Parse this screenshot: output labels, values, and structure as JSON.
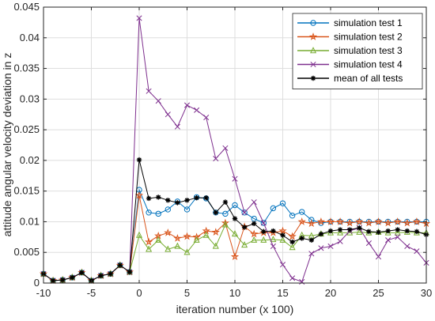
{
  "chart_data": {
    "type": "line",
    "xlabel": "iteration number (x 100)",
    "ylabel": "attitude angular velocity deviation in z",
    "xlim": [
      -10,
      30
    ],
    "ylim": [
      0,
      0.045
    ],
    "xticks": [
      -10,
      -5,
      0,
      5,
      10,
      15,
      20,
      25,
      30
    ],
    "xtick_labels": [
      "-10",
      "-5",
      "0",
      "5",
      "10",
      "15",
      "20",
      "25",
      "30"
    ],
    "yticks": [
      0,
      0.005,
      0.01,
      0.015,
      0.02,
      0.025,
      0.03,
      0.035,
      0.04,
      0.045
    ],
    "ytick_labels": [
      "0",
      "0.005",
      "0.01",
      "0.015",
      "0.02",
      "0.025",
      "0.03",
      "0.035",
      "0.04",
      "0.045"
    ],
    "grid": true,
    "legend_position": "top-right",
    "x": [
      -10,
      -9,
      -8,
      -7,
      -6,
      -5,
      -4,
      -3,
      -2,
      -1,
      0,
      1,
      2,
      3,
      4,
      5,
      6,
      7,
      8,
      9,
      10,
      11,
      12,
      13,
      14,
      15,
      16,
      17,
      18,
      19,
      20,
      21,
      22,
      23,
      24,
      25,
      26,
      27,
      28,
      29,
      30
    ],
    "series": [
      {
        "name": "simulation test 1",
        "color": "#0072BD",
        "marker": "circle",
        "values": [
          0.0015,
          0.0004,
          0.0005,
          0.0009,
          0.0017,
          0.0004,
          0.0012,
          0.0015,
          0.0029,
          0.0018,
          0.0152,
          0.0115,
          0.0113,
          0.012,
          0.0133,
          0.012,
          0.014,
          0.0138,
          0.0115,
          0.0113,
          0.0127,
          0.0115,
          0.0105,
          0.0098,
          0.0122,
          0.013,
          0.011,
          0.0116,
          0.0103,
          0.0098,
          0.01,
          0.01,
          0.01,
          0.01,
          0.01,
          0.01,
          0.01,
          0.01,
          0.01,
          0.01,
          0.01
        ]
      },
      {
        "name": "simulation test 2",
        "color": "#D95319",
        "marker": "star",
        "values": [
          0.0015,
          0.0004,
          0.0005,
          0.0009,
          0.0017,
          0.0004,
          0.0012,
          0.0015,
          0.0029,
          0.0018,
          0.0143,
          0.0067,
          0.0077,
          0.0082,
          0.0073,
          0.0076,
          0.0075,
          0.0085,
          0.0083,
          0.0098,
          0.0043,
          0.0092,
          0.008,
          0.0082,
          0.0082,
          0.0085,
          0.0076,
          0.01,
          0.0097,
          0.01,
          0.01,
          0.01,
          0.0098,
          0.01,
          0.0098,
          0.01,
          0.0098,
          0.01,
          0.0098,
          0.01,
          0.0097
        ]
      },
      {
        "name": "simulation test 3",
        "color": "#77AC30",
        "marker": "triangle",
        "values": [
          0.0015,
          0.0004,
          0.0005,
          0.0009,
          0.0017,
          0.0004,
          0.0012,
          0.0015,
          0.0029,
          0.0018,
          0.0078,
          0.0055,
          0.007,
          0.0055,
          0.006,
          0.005,
          0.007,
          0.0078,
          0.006,
          0.0095,
          0.008,
          0.0062,
          0.007,
          0.007,
          0.0071,
          0.007,
          0.0058,
          0.0078,
          0.0077,
          0.008,
          0.0082,
          0.0082,
          0.0082,
          0.0083,
          0.0082,
          0.0083,
          0.0082,
          0.0082,
          0.0083,
          0.0082,
          0.0082
        ]
      },
      {
        "name": "simulation test 4",
        "color": "#7E2F8E",
        "marker": "x",
        "values": [
          0.0015,
          0.0004,
          0.0005,
          0.0009,
          0.0017,
          0.0004,
          0.0012,
          0.0015,
          0.0029,
          0.0018,
          0.0432,
          0.0313,
          0.0297,
          0.0275,
          0.0255,
          0.029,
          0.0282,
          0.027,
          0.0203,
          0.022,
          0.017,
          0.0115,
          0.0132,
          0.0098,
          0.006,
          0.003,
          0.0008,
          0.0002,
          0.0048,
          0.0057,
          0.006,
          0.0068,
          0.0085,
          0.009,
          0.0065,
          0.0043,
          0.007,
          0.0075,
          0.006,
          0.0052,
          0.0033
        ]
      },
      {
        "name": "mean of all tests",
        "color": "#000000",
        "marker": "asterisk",
        "values": [
          0.0015,
          0.0004,
          0.0005,
          0.0009,
          0.0017,
          0.0004,
          0.0012,
          0.0015,
          0.0029,
          0.0018,
          0.0201,
          0.0138,
          0.014,
          0.0135,
          0.0131,
          0.0135,
          0.0139,
          0.0139,
          0.0115,
          0.0132,
          0.0105,
          0.0091,
          0.0097,
          0.0084,
          0.0085,
          0.0078,
          0.0067,
          0.0073,
          0.007,
          0.008,
          0.0085,
          0.0087,
          0.0087,
          0.009,
          0.0084,
          0.0083,
          0.0085,
          0.0087,
          0.0085,
          0.0084,
          0.0079
        ]
      }
    ]
  }
}
